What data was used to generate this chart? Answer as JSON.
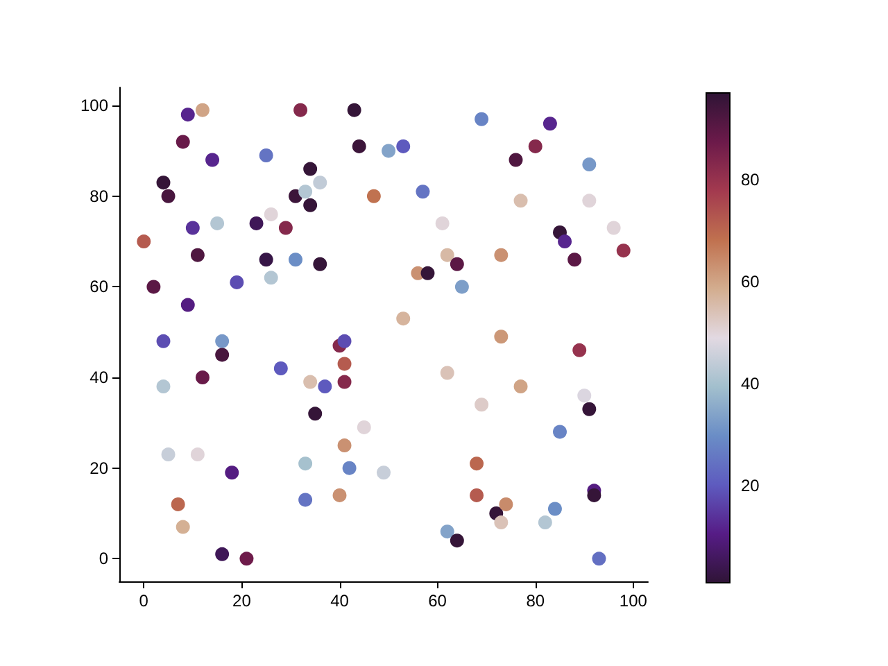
{
  "chart_data": {
    "type": "scatter",
    "marker": "circle",
    "x": [
      0,
      2,
      4,
      5,
      4,
      4,
      5,
      7,
      8,
      8,
      9,
      9,
      10,
      11,
      11,
      12,
      12,
      14,
      15,
      16,
      16,
      16,
      18,
      19,
      21,
      23,
      25,
      25,
      26,
      26,
      28,
      29,
      31,
      31,
      32,
      33,
      33,
      33,
      34,
      34,
      34,
      36,
      36,
      35,
      37,
      40,
      40,
      41,
      41,
      41,
      41,
      42,
      43,
      44,
      45,
      47,
      49,
      50,
      53,
      53,
      57,
      56,
      58,
      61,
      62,
      62,
      62,
      64,
      64,
      65,
      68,
      68,
      69,
      69,
      72,
      73,
      73,
      73,
      74,
      76,
      77,
      77,
      80,
      82,
      83,
      84,
      85,
      85,
      86,
      88,
      89,
      90,
      91,
      91,
      91,
      92,
      92,
      93,
      96,
      98
    ],
    "values": [
      70,
      60,
      83,
      80,
      48,
      38,
      23,
      12,
      7,
      92,
      98,
      56,
      73,
      67,
      23,
      99,
      40,
      88,
      74,
      48,
      45,
      1,
      19,
      61,
      0,
      74,
      89,
      66,
      76,
      62,
      42,
      73,
      80,
      66,
      99,
      81,
      21,
      13,
      86,
      78,
      39,
      83,
      65,
      32,
      38,
      47,
      14,
      48,
      43,
      39,
      25,
      20,
      99,
      91,
      29,
      80,
      19,
      90,
      91,
      53,
      81,
      63,
      63,
      74,
      67,
      41,
      6,
      65,
      4,
      60,
      14,
      21,
      97,
      34,
      10,
      67,
      49,
      8,
      12,
      88,
      79,
      38,
      91,
      8,
      96,
      11,
      28,
      72,
      70,
      66,
      46,
      36,
      79,
      87,
      33,
      15,
      14,
      0,
      73,
      68
    ],
    "cvalues": [
      72,
      90,
      96,
      93,
      18,
      42,
      45,
      70,
      58,
      88,
      12,
      10,
      14,
      92,
      50,
      60,
      88,
      12,
      42,
      32,
      93,
      5,
      10,
      18,
      87,
      5,
      25,
      3,
      50,
      42,
      20,
      83,
      95,
      30,
      83,
      42,
      40,
      25,
      96,
      96,
      55,
      44,
      96,
      96,
      20,
      83,
      63,
      18,
      72,
      83,
      63,
      28,
      96,
      95,
      50,
      68,
      45,
      34,
      20,
      57,
      25,
      63,
      96,
      50,
      56,
      54,
      34,
      90,
      96,
      33,
      72,
      70,
      28,
      52,
      96,
      63,
      62,
      54,
      64,
      92,
      55,
      60,
      83,
      42,
      12,
      30,
      28,
      96,
      12,
      90,
      80,
      48,
      50,
      32,
      96,
      10,
      96,
      24,
      50,
      80
    ],
    "xlim": [
      -5,
      103
    ],
    "ylim": [
      -5,
      104
    ],
    "xticks": [
      0,
      20,
      40,
      60,
      80,
      100
    ],
    "yticks": [
      0,
      20,
      40,
      60,
      80,
      100
    ],
    "clim": [
      1,
      97
    ],
    "cticks": [
      20,
      40,
      60,
      80
    ]
  }
}
